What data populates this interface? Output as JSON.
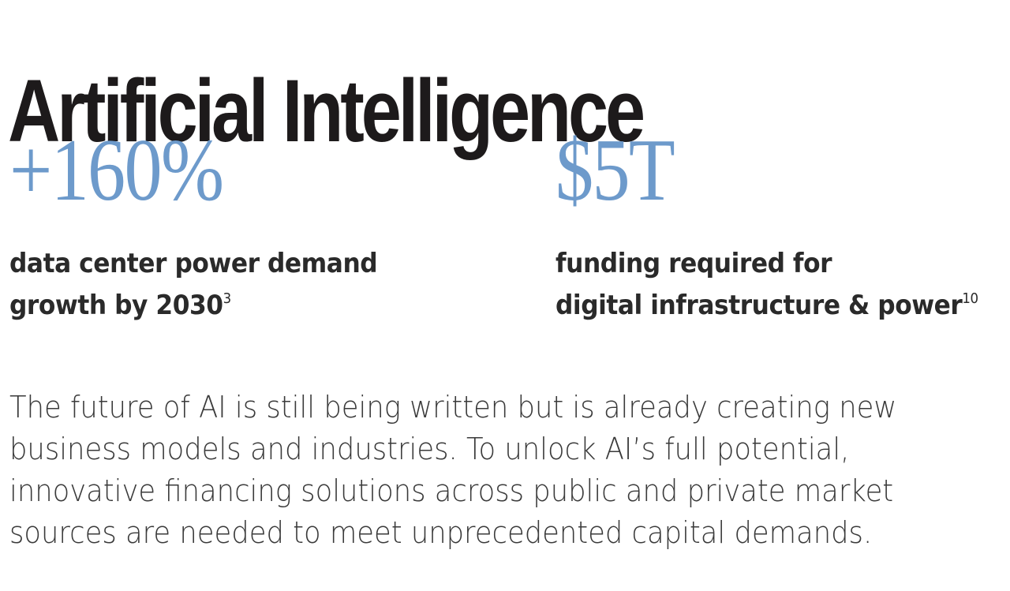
{
  "heading": {
    "title": "Artificial Intelligence"
  },
  "stats": [
    {
      "value": "+160%",
      "label_line1": "data center power demand",
      "label_line2": "growth by 2030",
      "footnote": "3"
    },
    {
      "value": "$5T",
      "label_line1": "funding required for",
      "label_line2": "digital infrastructure & power",
      "footnote": "10"
    }
  ],
  "body": {
    "lines": [
      "The future of AI is still being written but is already creating new",
      "business models and industries. To unlock AI’s full potential,",
      "innovative financing solutions across public and private market",
      "sources are needed to meet unprecedented capital demands."
    ]
  },
  "colors": {
    "accent": "#6d9acb",
    "heading": "#1d1a1b",
    "text": "#2a2a2a"
  }
}
